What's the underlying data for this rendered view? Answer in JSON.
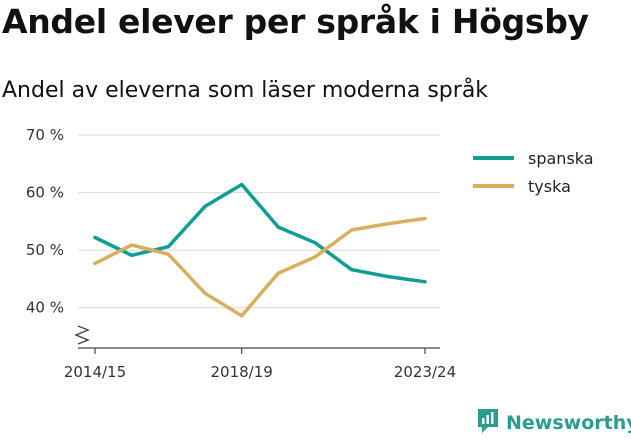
{
  "title": "Andel elever per språk i Högsby",
  "subtitle": "Andel av eleverna som läser moderna språk",
  "brand": {
    "name": "Newsworthy",
    "icon": "newsworthy-logo-icon",
    "color": "#2a9d8f"
  },
  "chart_data": {
    "type": "line",
    "x": [
      "2014/15",
      "2015/16",
      "2016/17",
      "2017/18",
      "2018/19",
      "2019/20",
      "2020/21",
      "2021/22",
      "2022/23",
      "2023/24"
    ],
    "x_tick_labels": [
      "2014/15",
      "2018/19",
      "2023/24"
    ],
    "y_ticks": [
      40,
      50,
      60,
      70
    ],
    "y_tick_labels": [
      "40 %",
      "50 %",
      "60 %",
      "70 %"
    ],
    "ylim": [
      33,
      70
    ],
    "y_axis_break": true,
    "grid": true,
    "legend_position": "top-right",
    "series": [
      {
        "name": "spanska",
        "color": "#0f9e93",
        "values": [
          52.2,
          49.1,
          50.6,
          57.6,
          61.4,
          54.0,
          51.3,
          46.6,
          45.4,
          44.5
        ]
      },
      {
        "name": "tyska",
        "color": "#d9ae5c",
        "values": [
          47.7,
          50.9,
          49.3,
          42.5,
          38.6,
          46.0,
          48.8,
          53.5,
          54.6,
          55.5
        ]
      }
    ]
  }
}
